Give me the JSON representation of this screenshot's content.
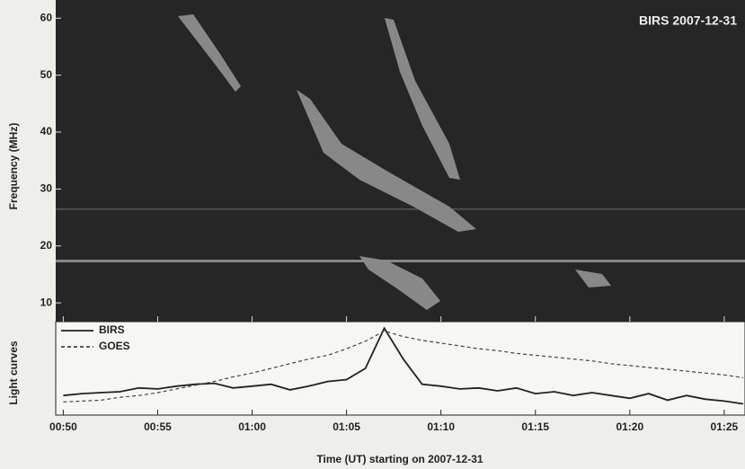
{
  "chart_data": [
    {
      "type": "spectrogram",
      "annotation": "BIRS 2007-12-31",
      "ylabel": "Frequency (MHz)",
      "ylim": [
        6.7,
        63.2
      ],
      "yticks": [
        10,
        20,
        30,
        40,
        50,
        60
      ],
      "xlim": [
        -0.4,
        36.1
      ]
    },
    {
      "type": "line",
      "ylabel": "Light curves",
      "xlabel": "Time (UT) starting on 2007-12-31",
      "xlim": [
        -0.4,
        36.1
      ],
      "ylim": [
        0,
        1
      ],
      "xticks": [
        {
          "value": 0,
          "label": "00:50"
        },
        {
          "value": 5,
          "label": "00:55"
        },
        {
          "value": 10,
          "label": "01:00"
        },
        {
          "value": 15,
          "label": "01:05"
        },
        {
          "value": 20,
          "label": "01:10"
        },
        {
          "value": 25,
          "label": "01:15"
        },
        {
          "value": 30,
          "label": "01:20"
        },
        {
          "value": 35,
          "label": "01:25"
        }
      ],
      "x": [
        0,
        1,
        2,
        3,
        4,
        5,
        6,
        7,
        8,
        9,
        10,
        11,
        12,
        13,
        14,
        15,
        16,
        17,
        18,
        19,
        20,
        21,
        22,
        23,
        24,
        25,
        26,
        27,
        28,
        29,
        30,
        31,
        32,
        33,
        34,
        35,
        36
      ],
      "legend": "upper left",
      "series": [
        {
          "name": "BIRS",
          "color": "#222222",
          "style": "solid",
          "values": [
            0.21,
            0.23,
            0.24,
            0.25,
            0.29,
            0.28,
            0.31,
            0.33,
            0.34,
            0.29,
            0.31,
            0.33,
            0.27,
            0.31,
            0.36,
            0.38,
            0.5,
            0.93,
            0.6,
            0.33,
            0.31,
            0.28,
            0.29,
            0.26,
            0.29,
            0.23,
            0.25,
            0.21,
            0.24,
            0.21,
            0.18,
            0.23,
            0.16,
            0.21,
            0.17,
            0.15,
            0.12
          ]
        },
        {
          "name": "GOES",
          "color": "#444444",
          "style": "dashed",
          "values": [
            0.14,
            0.15,
            0.16,
            0.19,
            0.21,
            0.24,
            0.28,
            0.32,
            0.36,
            0.41,
            0.45,
            0.5,
            0.55,
            0.6,
            0.64,
            0.71,
            0.79,
            0.9,
            0.84,
            0.8,
            0.77,
            0.74,
            0.71,
            0.69,
            0.66,
            0.64,
            0.62,
            0.6,
            0.58,
            0.55,
            0.53,
            0.51,
            0.49,
            0.47,
            0.45,
            0.43,
            0.4
          ]
        }
      ]
    }
  ]
}
